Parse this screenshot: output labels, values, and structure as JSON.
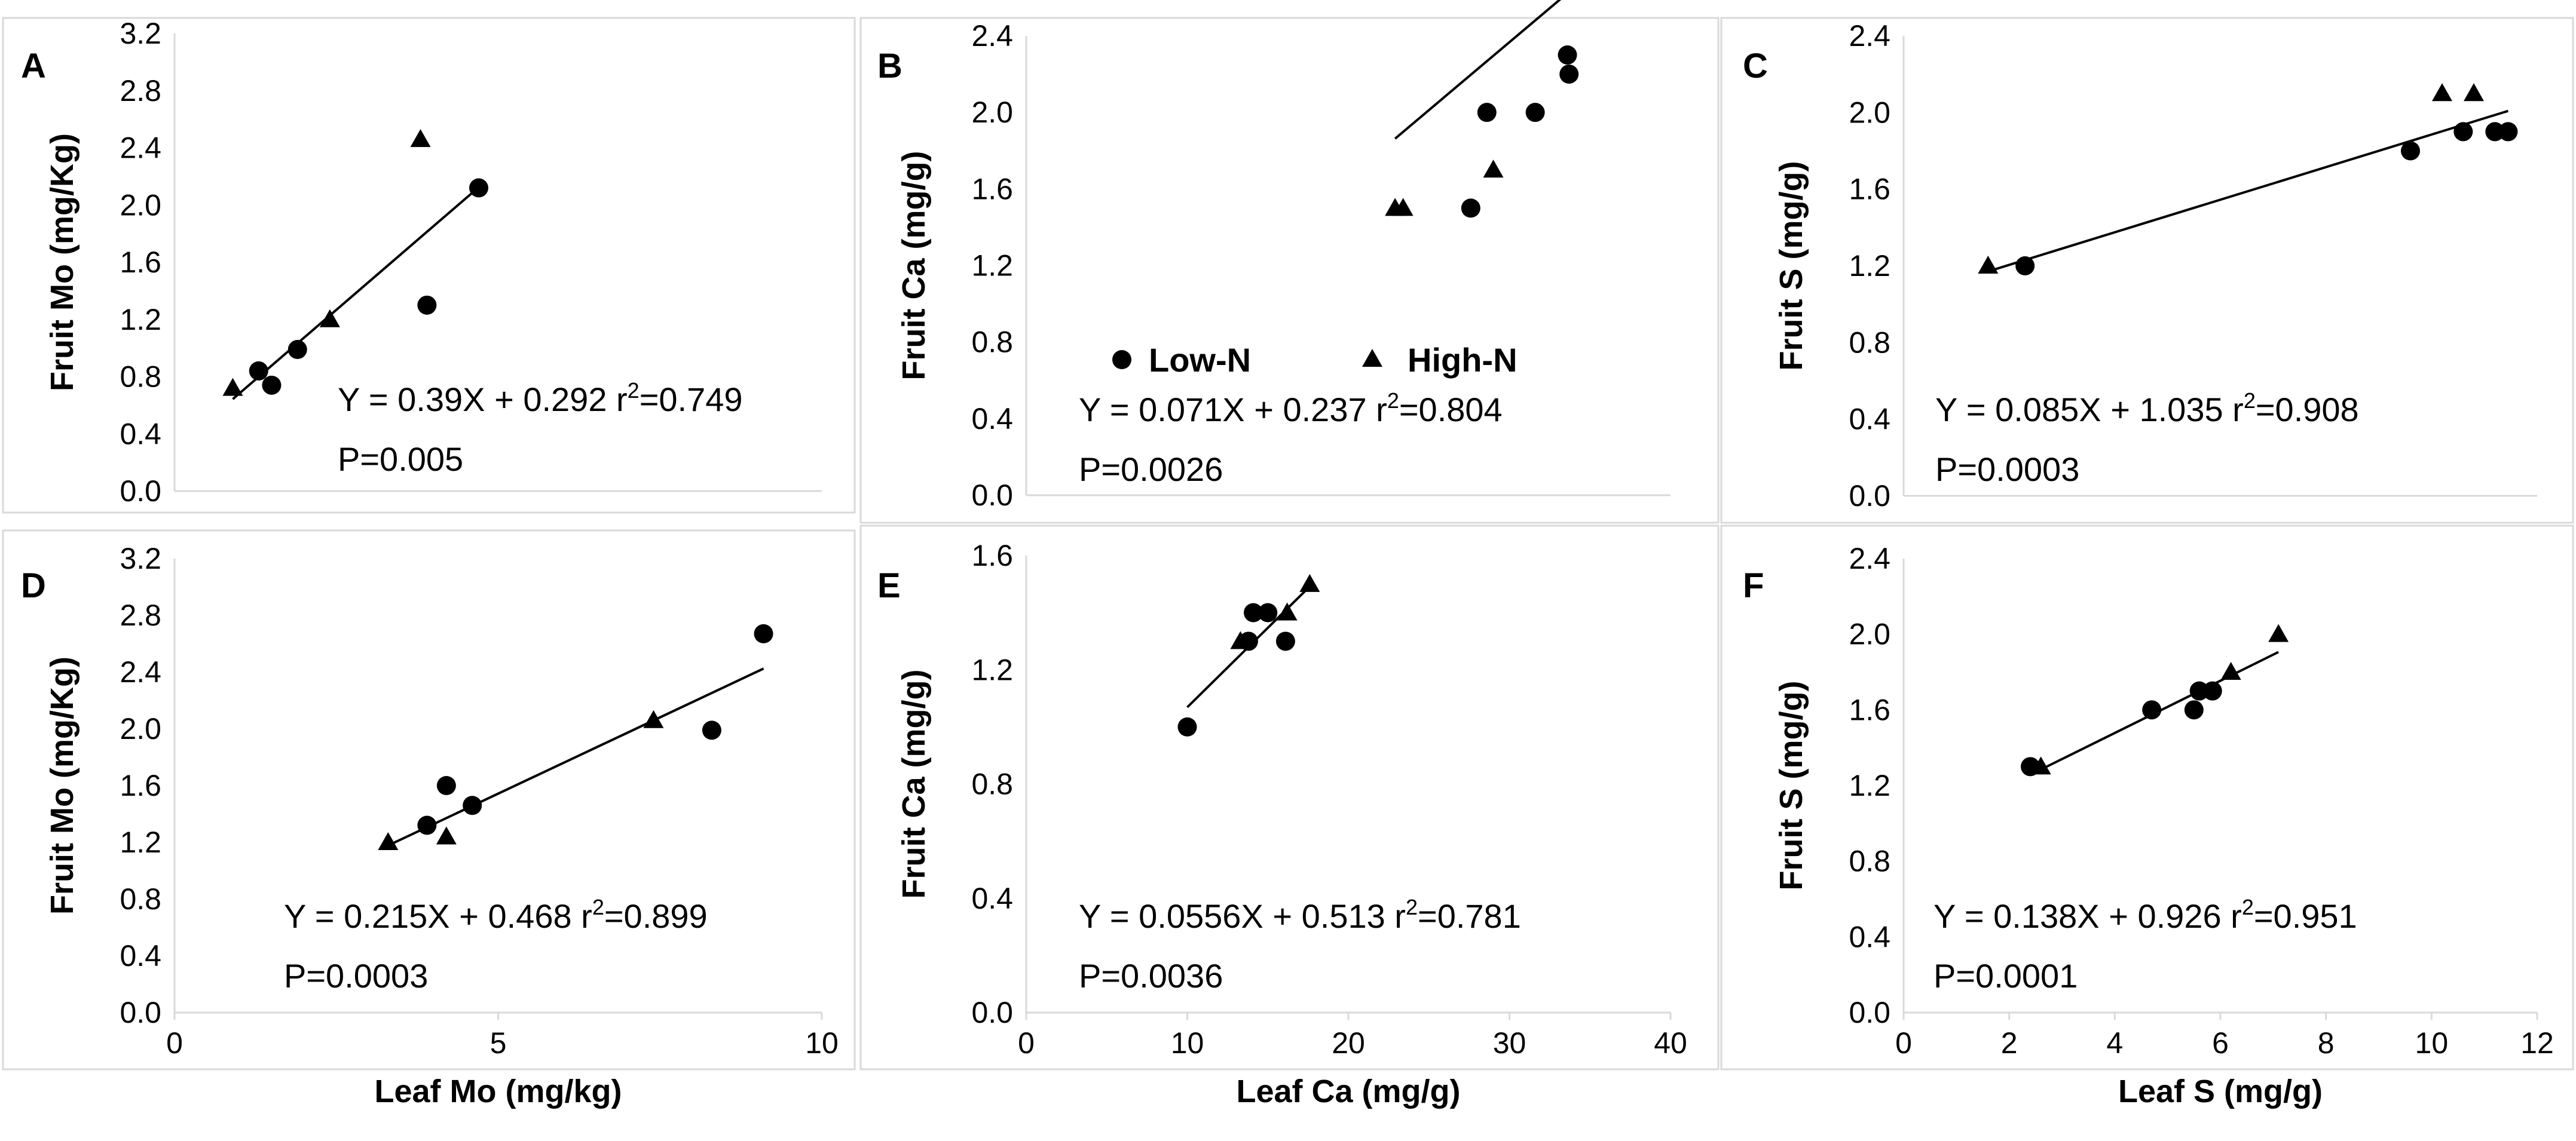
{
  "colors": {
    "marker": "#000000",
    "frame": "#d9d9d9",
    "text": "#000000"
  },
  "legend": {
    "series": [
      {
        "name": "Low-N",
        "marker": "circle"
      },
      {
        "name": "High-N",
        "marker": "triangle"
      }
    ]
  },
  "chart_data": [
    {
      "panel": "A",
      "type": "scatter",
      "xlabel": "",
      "ylabel": "Fruit Mo (mg/Kg)",
      "xlim": [
        0,
        10
      ],
      "ylim": [
        0,
        3.2
      ],
      "xticks": [],
      "yticks": [
        "0.0",
        "0.4",
        "0.8",
        "1.2",
        "1.6",
        "2.0",
        "2.4",
        "2.8",
        "3.2"
      ],
      "series": [
        {
          "name": "Low-N",
          "marker": "circle",
          "points": [
            [
              1.3,
              0.84
            ],
            [
              1.5,
              0.74
            ],
            [
              1.9,
              0.99
            ],
            [
              3.9,
              1.3
            ],
            [
              4.7,
              2.12
            ]
          ]
        },
        {
          "name": "High-N",
          "marker": "triangle",
          "points": [
            [
              0.9,
              0.72
            ],
            [
              2.4,
              1.2
            ],
            [
              3.8,
              2.46
            ]
          ]
        }
      ],
      "fit": {
        "x": [
          0.9,
          4.7
        ],
        "slope": 0.39,
        "intercept": 0.292
      },
      "annotation": {
        "equation": "Y = 0.39X + 0.292 r",
        "r2": "=0.749",
        "p": "P=0.005"
      }
    },
    {
      "panel": "B",
      "type": "scatter",
      "xlabel": "",
      "ylabel": "Fruit Ca (mg/g)",
      "xlim": [
        0,
        40
      ],
      "ylim": [
        0,
        2.4
      ],
      "xticks": [],
      "yticks": [
        "0.0",
        "0.4",
        "0.8",
        "1.2",
        "1.6",
        "2.0",
        "2.4"
      ],
      "series": [
        {
          "name": "Low-N",
          "marker": "circle",
          "points": [
            [
              27.6,
              1.5
            ],
            [
              28.6,
              2.0
            ],
            [
              31.6,
              2.0
            ],
            [
              33.6,
              2.3
            ],
            [
              33.7,
              2.2
            ]
          ]
        },
        {
          "name": "High-N",
          "marker": "triangle",
          "points": [
            [
              22.9,
              1.5
            ],
            [
              23.4,
              1.5
            ],
            [
              29.0,
              1.7
            ]
          ]
        }
      ],
      "fit": {
        "x": [
          22.9,
          33.7
        ],
        "slope": 0.071,
        "intercept": 0.237
      },
      "annotation": {
        "equation": "Y = 0.071X + 0.237 r",
        "r2": "=0.804",
        "p": "P=0.0026"
      }
    },
    {
      "panel": "C",
      "type": "scatter",
      "xlabel": "",
      "ylabel": "Fruit S (mg/g)",
      "xlim": [
        0,
        12
      ],
      "ylim": [
        0,
        2.4
      ],
      "xticks": [],
      "yticks": [
        "0.0",
        "0.4",
        "0.8",
        "1.2",
        "1.6",
        "2.0",
        "2.4"
      ],
      "series": [
        {
          "name": "Low-N",
          "marker": "circle",
          "points": [
            [
              2.3,
              1.2
            ],
            [
              9.6,
              1.8
            ],
            [
              10.6,
              1.9
            ],
            [
              11.2,
              1.9
            ],
            [
              11.45,
              1.9
            ]
          ]
        },
        {
          "name": "High-N",
          "marker": "triangle",
          "points": [
            [
              1.6,
              1.2
            ],
            [
              10.2,
              2.1
            ],
            [
              10.8,
              2.1
            ]
          ]
        }
      ],
      "fit": {
        "x": [
          1.6,
          11.45
        ],
        "slope": 0.085,
        "intercept": 1.035
      },
      "annotation": {
        "equation": "Y = 0.085X + 1.035 r",
        "r2": "=0.908",
        "p": "P=0.0003"
      }
    },
    {
      "panel": "D",
      "type": "scatter",
      "xlabel": "Leaf Mo (mg/kg)",
      "ylabel": "Fruit Mo (mg/Kg)",
      "xlim": [
        0,
        10
      ],
      "ylim": [
        0,
        3.2
      ],
      "xticks": [
        "0",
        "5",
        "10"
      ],
      "yticks": [
        "0.0",
        "0.4",
        "0.8",
        "1.2",
        "1.6",
        "2.0",
        "2.4",
        "2.8",
        "3.2"
      ],
      "series": [
        {
          "name": "Low-N",
          "marker": "circle",
          "points": [
            [
              3.9,
              1.32
            ],
            [
              4.2,
              1.6
            ],
            [
              4.6,
              1.46
            ],
            [
              8.3,
              1.99
            ],
            [
              9.1,
              2.67
            ]
          ]
        },
        {
          "name": "High-N",
          "marker": "triangle",
          "points": [
            [
              3.3,
              1.2
            ],
            [
              4.2,
              1.24
            ],
            [
              7.4,
              2.06
            ]
          ]
        }
      ],
      "fit": {
        "x": [
          3.3,
          9.1
        ],
        "slope": 0.215,
        "intercept": 0.468
      },
      "annotation": {
        "equation": "Y = 0.215X + 0.468 r",
        "r2": "=0.899",
        "p": "P=0.0003"
      }
    },
    {
      "panel": "E",
      "type": "scatter",
      "xlabel": "Leaf Ca (mg/g)",
      "ylabel": "Fruit Ca (mg/g)",
      "xlim": [
        0,
        40
      ],
      "ylim": [
        0,
        1.6
      ],
      "xticks": [
        "0",
        "10",
        "20",
        "30",
        "40"
      ],
      "yticks": [
        "0.0",
        "0.4",
        "0.8",
        "1.2",
        "1.6"
      ],
      "series": [
        {
          "name": "Low-N",
          "marker": "circle",
          "points": [
            [
              10.0,
              1.0
            ],
            [
              13.8,
              1.3
            ],
            [
              14.1,
              1.4
            ],
            [
              15.0,
              1.4
            ],
            [
              16.1,
              1.3
            ]
          ]
        },
        {
          "name": "High-N",
          "marker": "triangle",
          "points": [
            [
              13.3,
              1.3
            ],
            [
              16.2,
              1.4
            ],
            [
              17.6,
              1.5
            ]
          ]
        }
      ],
      "fit": {
        "x": [
          10.0,
          17.6
        ],
        "slope": 0.0556,
        "intercept": 0.513
      },
      "annotation": {
        "equation": "Y = 0.0556X + 0.513 r",
        "r2": "=0.781",
        "p": "P=0.0036"
      }
    },
    {
      "panel": "F",
      "type": "scatter",
      "xlabel": "Leaf S (mg/g)",
      "ylabel": "Fruit S (mg/g)",
      "xlim": [
        0,
        12
      ],
      "ylim": [
        0,
        2.4
      ],
      "xticks": [
        "0",
        "2",
        "4",
        "6",
        "8",
        "10",
        "12"
      ],
      "yticks": [
        "0.0",
        "0.4",
        "0.8",
        "1.2",
        "1.6",
        "2.0",
        "2.4"
      ],
      "series": [
        {
          "name": "Low-N",
          "marker": "circle",
          "points": [
            [
              2.4,
              1.3
            ],
            [
              4.7,
              1.6
            ],
            [
              5.5,
              1.6
            ],
            [
              5.6,
              1.7
            ],
            [
              5.85,
              1.7
            ]
          ]
        },
        {
          "name": "High-N",
          "marker": "triangle",
          "points": [
            [
              2.6,
              1.3
            ],
            [
              6.2,
              1.8
            ],
            [
              7.1,
              2.0
            ]
          ]
        }
      ],
      "fit": {
        "x": [
          2.4,
          7.1
        ],
        "slope": 0.138,
        "intercept": 0.926
      },
      "annotation": {
        "equation": "Y = 0.138X + 0.926 r",
        "r2": "=0.951",
        "p": "P=0.0001"
      }
    }
  ]
}
